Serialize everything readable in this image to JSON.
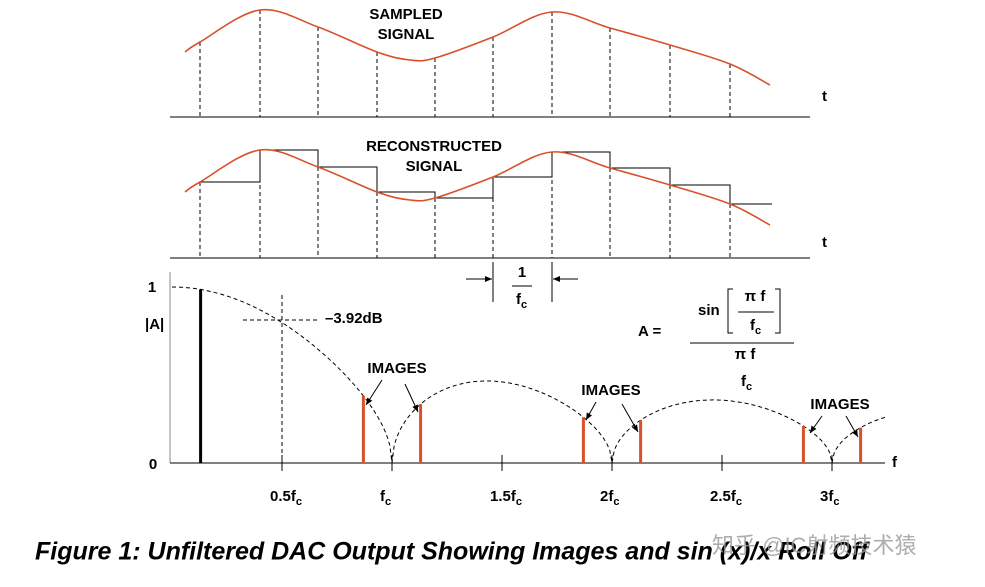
{
  "top_panel": {
    "label": [
      "SAMPLED",
      "SIGNAL"
    ],
    "axis_label": "t"
  },
  "middle_panel": {
    "label": [
      "RECONSTRUCTED",
      "SIGNAL"
    ],
    "axis_label": "t",
    "period": {
      "numerator": "1",
      "denominator": {
        "main": "f",
        "sub": "c"
      }
    }
  },
  "spectrum": {
    "y_axis_label": "|A|",
    "y_top": "1",
    "y_bottom": "0",
    "x_axis_label": "f",
    "x_labels": [
      {
        "main": "0.5f",
        "sub": "c"
      },
      {
        "main": "f",
        "sub": "c"
      },
      {
        "main": "1.5f",
        "sub": "c"
      },
      {
        "main": "2f",
        "sub": "c"
      },
      {
        "main": "2.5f",
        "sub": "c"
      },
      {
        "main": "3f",
        "sub": "c"
      }
    ],
    "annotation": "–3.92dB",
    "images_labels": [
      "IMAGES",
      "IMAGES",
      "IMAGES"
    ]
  },
  "formula": {
    "lhs": "A =",
    "func": "sin",
    "numerator_top": "π f",
    "numerator_bottom": {
      "main": "f",
      "sub": "c"
    },
    "denominator_top": "π f",
    "denominator_bottom": {
      "main": "f",
      "sub": "c"
    }
  },
  "caption": "Figure 1: Unfiltered DAC Output Showing Images and sin (x)/x Roll Off",
  "watermark": "知乎 @IC射频技术猿"
}
